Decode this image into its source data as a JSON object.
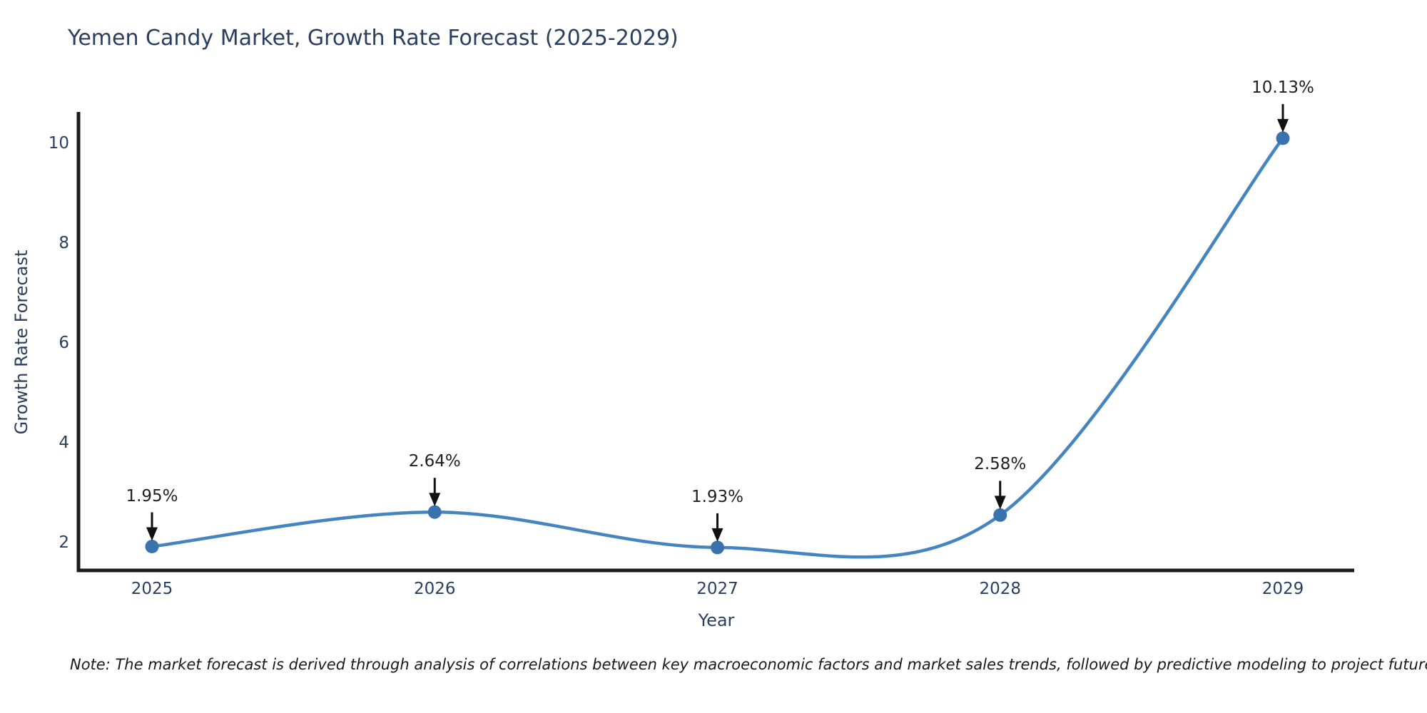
{
  "title": "Yemen Candy Market, Growth Rate Forecast (2025-2029)",
  "note": "Note: The market forecast is derived through analysis of correlations between key macroeconomic factors and market sales trends, followed by predictive modeling to project future sales",
  "chart_data": {
    "type": "line",
    "title": "Yemen Candy Market, Growth Rate Forecast (2025-2029)",
    "xlabel": "Year",
    "ylabel": "Growth Rate Forecast",
    "categories": [
      "2025",
      "2026",
      "2027",
      "2028",
      "2029"
    ],
    "values": [
      1.95,
      2.64,
      1.93,
      2.58,
      10.13
    ],
    "annotations": [
      "1.95%",
      "2.64%",
      "1.93%",
      "2.58%",
      "10.13%"
    ],
    "yticks": [
      2,
      4,
      6,
      8,
      10
    ],
    "ylim": [
      1.4,
      10.8
    ],
    "grid": false,
    "legend_position": "none",
    "line_shape": "spline",
    "line_color": "#4484bf",
    "marker_color": "#3a72ad",
    "axis_color": "#1c1c1c",
    "arrow_color": "#111111",
    "text_color": "#2a3f5f"
  }
}
